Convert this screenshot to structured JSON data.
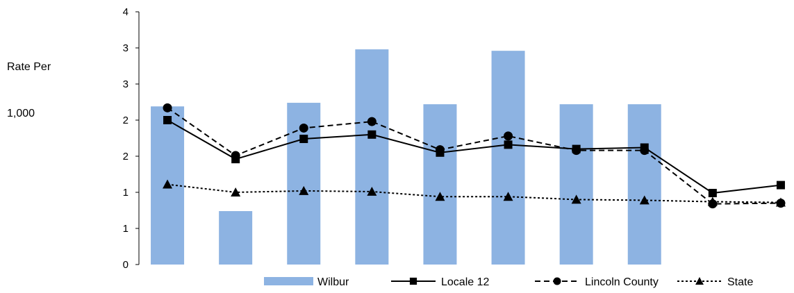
{
  "chart_data": {
    "type": "bar",
    "ylabel_lines": [
      "Rate Per",
      "1,000"
    ],
    "yticks": [
      "0",
      "1",
      "1",
      "2",
      "2",
      "3",
      "3",
      "4"
    ],
    "ylim": [
      0,
      3.5
    ],
    "grid": false,
    "legend_position": "bottom",
    "categories_count": 10,
    "series": [
      {
        "name": "Wilbur",
        "kind": "bar",
        "color": "#8db3e2",
        "values": [
          2.19,
          0.74,
          2.24,
          2.98,
          2.22,
          2.96,
          2.22,
          2.22,
          null,
          null
        ]
      },
      {
        "name": "Locale 12",
        "kind": "line",
        "style": "solid",
        "marker": "square",
        "color": "#000000",
        "values": [
          2.0,
          1.46,
          1.74,
          1.8,
          1.55,
          1.66,
          1.6,
          1.62,
          0.99,
          1.1
        ]
      },
      {
        "name": "Lincoln County",
        "kind": "line",
        "style": "dashed",
        "marker": "circle",
        "color": "#000000",
        "values": [
          2.17,
          1.51,
          1.89,
          1.98,
          1.59,
          1.78,
          1.58,
          1.58,
          0.84,
          0.85
        ]
      },
      {
        "name": "State",
        "kind": "line",
        "style": "dotted",
        "marker": "triangle",
        "color": "#000000",
        "values": [
          1.11,
          1.0,
          1.02,
          1.01,
          0.94,
          0.94,
          0.9,
          0.89,
          0.87,
          0.86
        ]
      }
    ]
  }
}
